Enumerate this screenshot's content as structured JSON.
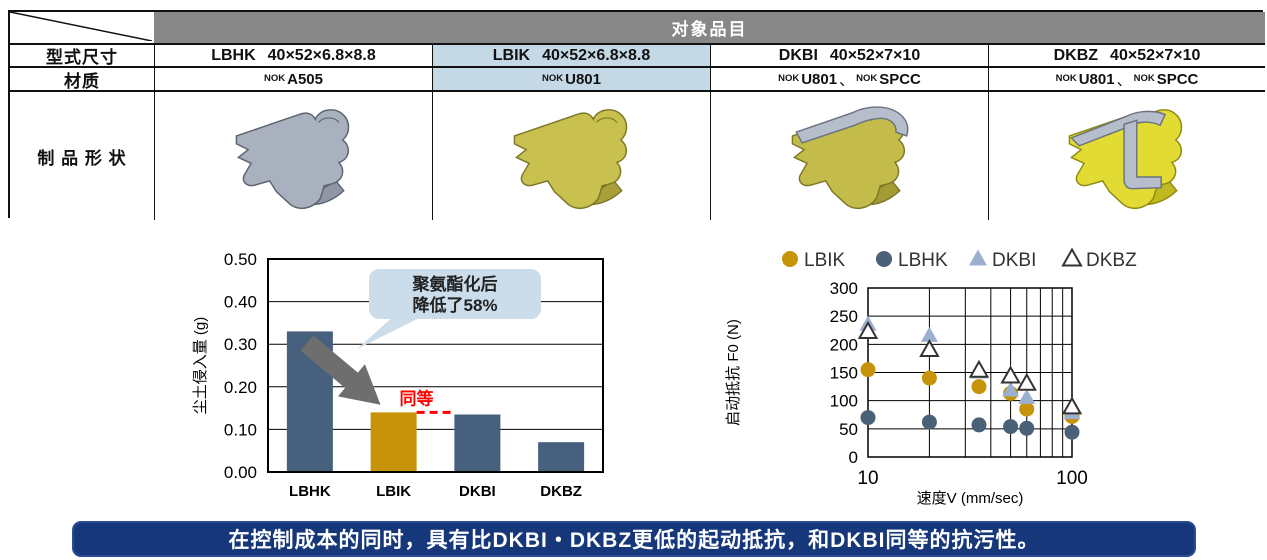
{
  "table": {
    "header": "对象品目",
    "header_bg": "#878787",
    "highlight_bg": "#C4D8E6",
    "row_labels": {
      "size": "型式尺寸",
      "material": "材质",
      "shape": "制 品 形 状"
    },
    "material_separator": "、",
    "products": [
      {
        "model": "LBHK",
        "size": "40×52×6.8×8.8",
        "highlight": false,
        "materials": [
          {
            "brand": "NOK",
            "name": "A505"
          }
        ],
        "image": "gray-rubber-seal"
      },
      {
        "model": "LBIK",
        "size": "40×52×6.8×8.8",
        "highlight": true,
        "materials": [
          {
            "brand": "NOK",
            "name": "U801"
          }
        ],
        "image": "gold-urethane-seal"
      },
      {
        "model": "DKBI",
        "size": "40×52×7×10",
        "highlight": false,
        "materials": [
          {
            "brand": "NOK",
            "name": "U801"
          },
          {
            "brand": "NOK",
            "name": "SPCC"
          }
        ],
        "image": "gold-seal-with-metal-cap"
      },
      {
        "model": "DKBZ",
        "size": "40×52×7×10",
        "highlight": false,
        "materials": [
          {
            "brand": "NOK",
            "name": "U801"
          },
          {
            "brand": "NOK",
            "name": "SPCC"
          }
        ],
        "image": "yellow-seal-with-metal-insert"
      }
    ]
  },
  "chart_data": [
    {
      "type": "bar",
      "ylabel": "尘土侵入量 (g)",
      "categories": [
        "LBHK",
        "LBIK",
        "DKBI",
        "DKBZ"
      ],
      "values": [
        0.33,
        0.14,
        0.135,
        0.07
      ],
      "ylim": [
        0,
        0.5
      ],
      "yticks": [
        "0.00",
        "0.10",
        "0.20",
        "0.30",
        "0.40",
        "0.50"
      ],
      "bar_colors": [
        "#46607E",
        "#C79409",
        "#46607E",
        "#46607E"
      ],
      "grid": "horizontal",
      "annotations": {
        "callout": {
          "lines": [
            "聚氨酯化后",
            "降低了58%"
          ],
          "bg": "#CBDCEA"
        },
        "equal": {
          "text": "同等",
          "color": "#FF0000"
        },
        "arrow_color": "#6E6E6E"
      }
    },
    {
      "type": "scatter",
      "xlabel": "速度V (mm/sec)",
      "ylabel": "启动抵抗 F0 (N)",
      "x_scale": "log",
      "xlim": [
        10,
        100
      ],
      "ylim": [
        0,
        300
      ],
      "xticks": [
        10,
        100
      ],
      "yticks": [
        0,
        50,
        100,
        150,
        200,
        250,
        300
      ],
      "grid": "both",
      "legend_position": "top",
      "series": [
        {
          "name": "LBIK",
          "marker": "circle",
          "color": "#C79409",
          "points": [
            [
              10,
              155
            ],
            [
              20,
              140
            ],
            [
              35,
              125
            ],
            [
              50,
              113
            ],
            [
              60,
              85
            ],
            [
              100,
              72
            ]
          ]
        },
        {
          "name": "LBHK",
          "marker": "circle",
          "color": "#4A6178",
          "points": [
            [
              10,
              70
            ],
            [
              20,
              62
            ],
            [
              35,
              57
            ],
            [
              50,
              54
            ],
            [
              60,
              51
            ],
            [
              100,
              44
            ]
          ]
        },
        {
          "name": "DKBI",
          "marker": "triangle",
          "color": "#9BAFCE",
          "points": [
            [
              10,
              235
            ],
            [
              20,
              215
            ],
            [
              35,
              150
            ],
            [
              50,
              118
            ],
            [
              60,
              105
            ],
            [
              100,
              78
            ]
          ]
        },
        {
          "name": "DKBZ",
          "marker": "triangle-open",
          "color": "#FFFFFF",
          "points": [
            [
              10,
              222
            ],
            [
              20,
              190
            ],
            [
              35,
              153
            ],
            [
              50,
              143
            ],
            [
              60,
              130
            ],
            [
              100,
              88
            ]
          ]
        }
      ]
    }
  ],
  "banner": {
    "text": "在控制成本的同时，具有比DKBI・DKBZ更低的起动抵抗，和DKBI同等的抗污性。",
    "bg": "#16387B",
    "border": "#2A4C96",
    "text_color": "#FFFFFF"
  }
}
